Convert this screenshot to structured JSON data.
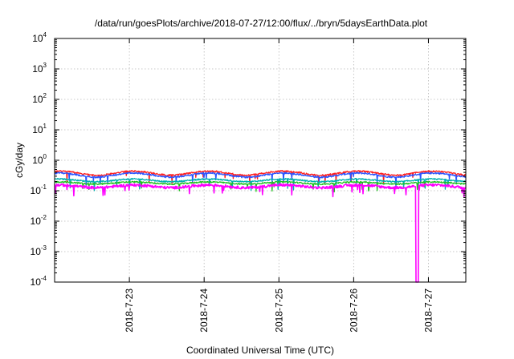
{
  "chart_data": {
    "type": "line",
    "title": "/data/run/goesPlots/archive/2018-07-27/12:00/flux/../bryn/5daysEarthData.plot",
    "xlabel": "Coordinated Universal Time (UTC)",
    "ylabel": "cGy/day",
    "y_scale": "log",
    "ylim_exponents": [
      -4,
      4
    ],
    "y_tick_labels": [
      {
        "base": "10",
        "exp": "4"
      },
      {
        "base": "10",
        "exp": "3"
      },
      {
        "base": "10",
        "exp": "2"
      },
      {
        "base": "10",
        "exp": "1"
      },
      {
        "base": "10",
        "exp": "0"
      },
      {
        "base": "10",
        "exp": "-1"
      },
      {
        "base": "10",
        "exp": "-2"
      },
      {
        "base": "10",
        "exp": "-3"
      },
      {
        "base": "10",
        "exp": "-4"
      }
    ],
    "xlim": [
      "2018-07-22T00:00",
      "2018-07-27T12:00"
    ],
    "x_tick_labels": [
      "2018-7-23",
      "2018-7-24",
      "2018-7-25",
      "2018-7-26",
      "2018-7-27"
    ],
    "x_tick_dates": [
      "2018-07-23T00:00",
      "2018-07-24T00:00",
      "2018-07-25T00:00",
      "2018-07-26T00:00",
      "2018-07-27T00:00"
    ],
    "grid": true,
    "legend": "none",
    "series": [
      {
        "color": "#ff2020",
        "base_value": 0.38,
        "period_days": 1.0,
        "amplitude": 0.15,
        "noise": 0.06
      },
      {
        "color": "#2a55ff",
        "base_value": 0.33,
        "period_days": 1.0,
        "amplitude": 0.15,
        "noise": 0.06
      },
      {
        "color": "#00b0b0",
        "base_value": 0.22,
        "period_days": 1.0,
        "amplitude": 0.1,
        "noise": 0.05
      },
      {
        "color": "#20c020",
        "base_value": 0.18,
        "period_days": 1.0,
        "amplitude": 0.08,
        "noise": 0.05
      },
      {
        "color": "#ff00ff",
        "base_value": 0.14,
        "period_days": 1.0,
        "amplitude": 0.1,
        "noise": 0.1,
        "dropout": {
          "start": "2018-07-26T20:00",
          "end": "2018-07-26T20:45",
          "value": 0.0001
        }
      }
    ]
  }
}
